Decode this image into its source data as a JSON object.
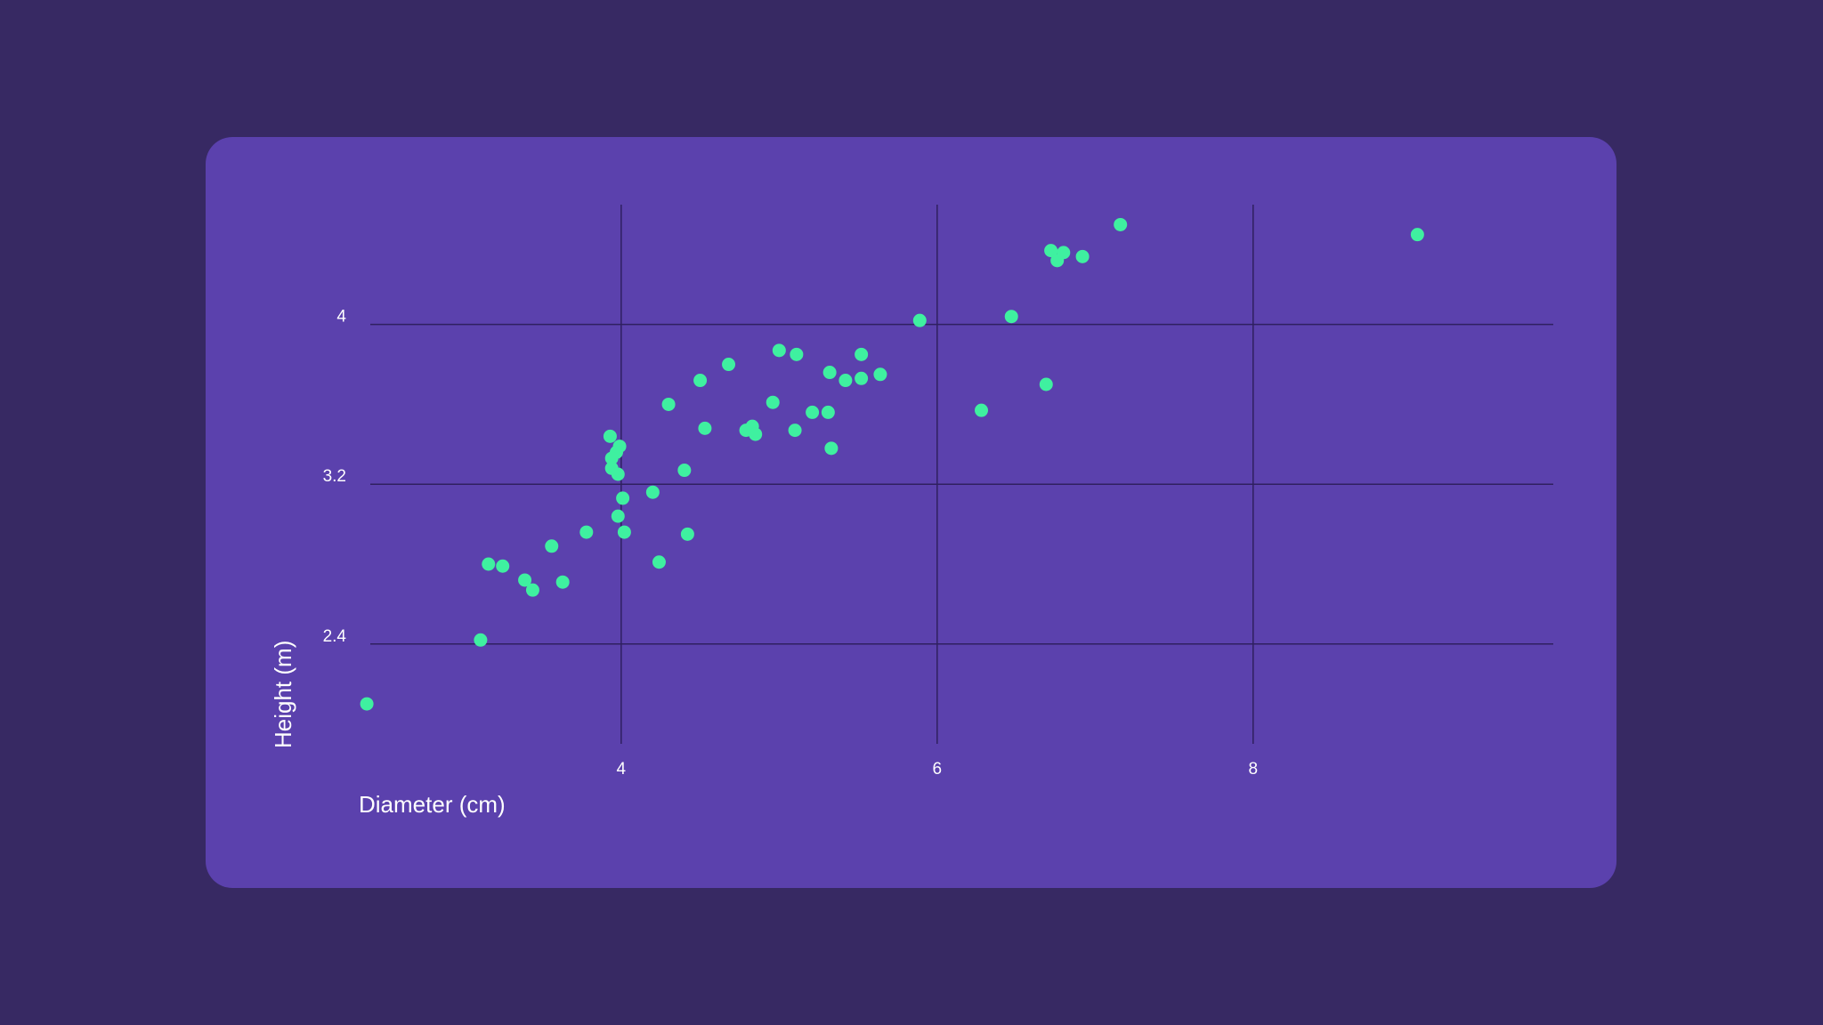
{
  "chart_data": {
    "type": "scatter",
    "title": "",
    "xlabel": "Diameter (cm)",
    "ylabel": "Height (m)",
    "xlim": [
      2.35,
      9.9
    ],
    "ylim": [
      1.9,
      4.6
    ],
    "x_ticks": [
      4,
      6,
      8
    ],
    "y_ticks": [
      2.4,
      3.2,
      4
    ],
    "x_tick_labels": [
      "4",
      "6",
      "8"
    ],
    "y_tick_labels": [
      "2.4",
      "3.2",
      "4"
    ],
    "grid": true,
    "legend": "none",
    "point_color": "#3ff0a0",
    "series": [
      {
        "points": [
          [
            2.39,
            2.1
          ],
          [
            3.11,
            2.42
          ],
          [
            3.16,
            2.8
          ],
          [
            3.25,
            2.79
          ],
          [
            3.39,
            2.72
          ],
          [
            3.44,
            2.67
          ],
          [
            3.56,
            2.89
          ],
          [
            3.63,
            2.71
          ],
          [
            3.78,
            2.96
          ],
          [
            3.98,
            3.04
          ],
          [
            3.93,
            3.44
          ],
          [
            3.99,
            3.39
          ],
          [
            3.97,
            3.36
          ],
          [
            3.94,
            3.33
          ],
          [
            3.94,
            3.28
          ],
          [
            3.98,
            3.25
          ],
          [
            4.01,
            3.13
          ],
          [
            4.02,
            2.96
          ],
          [
            4.2,
            3.16
          ],
          [
            4.24,
            2.81
          ],
          [
            4.3,
            3.6
          ],
          [
            4.4,
            3.27
          ],
          [
            4.42,
            2.95
          ],
          [
            4.5,
            3.72
          ],
          [
            4.53,
            3.48
          ],
          [
            4.68,
            3.8
          ],
          [
            4.79,
            3.47
          ],
          [
            4.83,
            3.49
          ],
          [
            4.85,
            3.45
          ],
          [
            4.96,
            3.61
          ],
          [
            5.0,
            3.87
          ],
          [
            5.1,
            3.47
          ],
          [
            5.11,
            3.85
          ],
          [
            5.21,
            3.56
          ],
          [
            5.31,
            3.56
          ],
          [
            5.32,
            3.76
          ],
          [
            5.33,
            3.38
          ],
          [
            5.42,
            3.72
          ],
          [
            5.52,
            3.73
          ],
          [
            5.52,
            3.85
          ],
          [
            5.64,
            3.75
          ],
          [
            5.89,
            4.02
          ],
          [
            6.28,
            3.57
          ],
          [
            6.47,
            4.04
          ],
          [
            6.69,
            3.7
          ],
          [
            6.72,
            4.37
          ],
          [
            6.76,
            4.32
          ],
          [
            6.8,
            4.36
          ],
          [
            6.92,
            4.34
          ],
          [
            7.16,
            4.5
          ],
          [
            9.04,
            4.45
          ]
        ]
      }
    ]
  }
}
